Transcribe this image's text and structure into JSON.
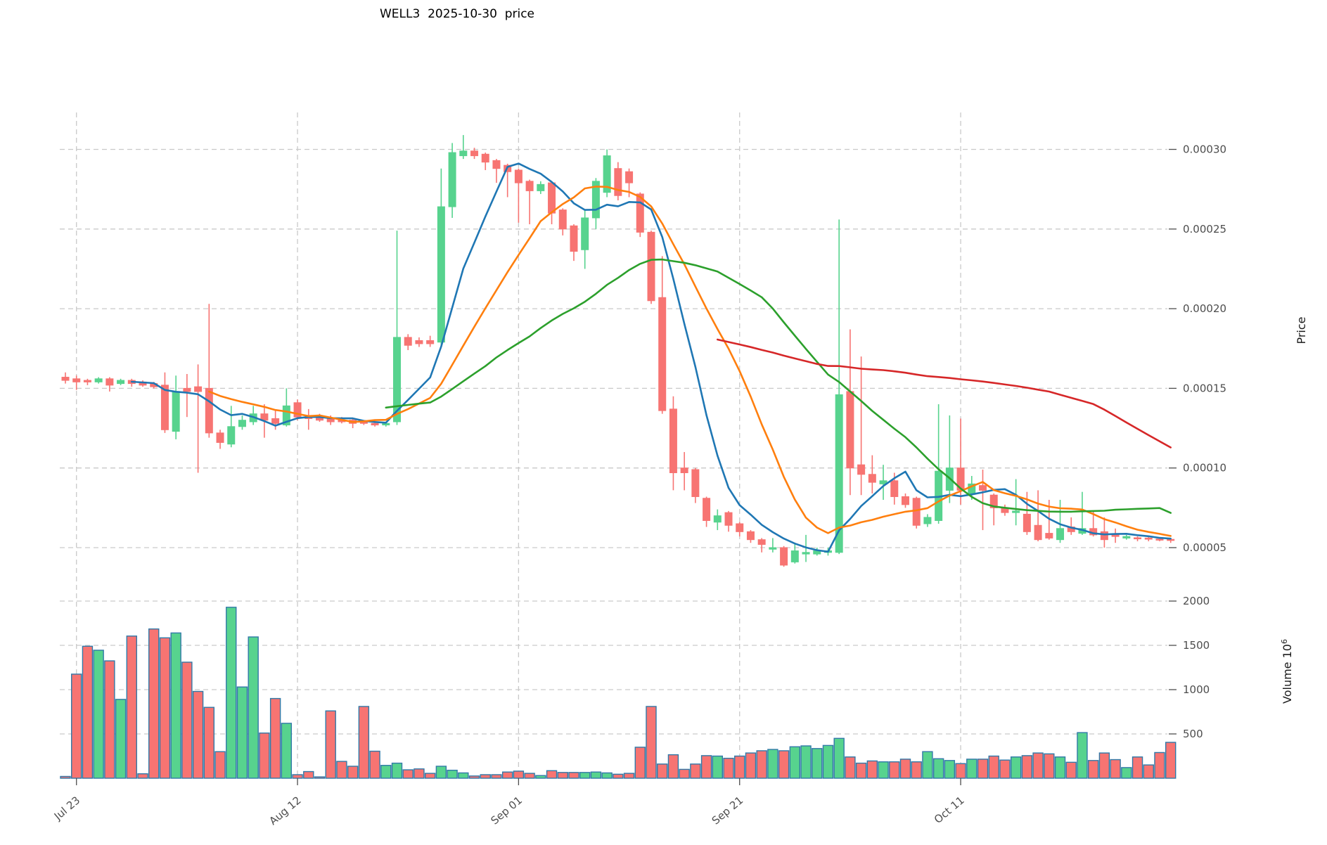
{
  "title": "WELL3  2025-10-30  price",
  "colors": {
    "up": "#57d38e",
    "down": "#f77472",
    "volume_edge": "#3179a8",
    "grid": "#c9c9c9",
    "tick_text": "#4d4d4d",
    "axis_label_text": "#1a1a1a",
    "ma_colors": [
      "#1f77b4",
      "#ff7f0e",
      "#2ca02c",
      "#d62728"
    ]
  },
  "chart_data": {
    "type": "candlestick_with_volume",
    "title": "WELL3  2025-10-30  price",
    "grid": "dashed",
    "legend_position": "none",
    "price_axis": {
      "label": "Price",
      "side": "right",
      "tick_labels": [
        "0.00005",
        "0.00010",
        "0.00015",
        "0.00020",
        "0.00025",
        "0.00030"
      ],
      "tick_values_micro": [
        50,
        100,
        150,
        200,
        250,
        300
      ],
      "range_micro": [
        32,
        330
      ]
    },
    "volume_axis": {
      "label_base": "Volume 10",
      "label_exponent": "6",
      "side": "right",
      "tick_labels": [
        "500",
        "1000",
        "1500",
        "2000"
      ],
      "tick_values": [
        500,
        1000,
        1500,
        2000
      ],
      "range": [
        0,
        2350
      ]
    },
    "x_axis": {
      "tick_labels": [
        "Jul 23",
        "Aug 12",
        "Sep 01",
        "Sep 21",
        "Oct 11"
      ],
      "tick_indices": [
        1,
        21,
        41,
        61,
        81
      ],
      "label_rotation_deg": -40
    },
    "moving_averages": [
      {
        "name": "MA7",
        "period": 7,
        "color": "#1f77b4"
      },
      {
        "name": "MA14",
        "period": 14,
        "color": "#ff7f0e"
      },
      {
        "name": "MA30",
        "period": 30,
        "color": "#2ca02c"
      },
      {
        "name": "MA60",
        "period": 60,
        "color": "#d62728"
      }
    ],
    "price_unit": "1e-6 (candle prices below are price * 10^-6)",
    "volume_unit": "10^6",
    "candles_format": [
      "open",
      "high",
      "low",
      "close",
      "volume"
    ],
    "candles": [
      [
        157,
        160,
        153,
        155,
        20
      ],
      [
        156,
        158,
        149,
        154,
        1175
      ],
      [
        155,
        156,
        152,
        154,
        1490
      ],
      [
        154,
        157,
        153,
        156,
        1445
      ],
      [
        156,
        157,
        148,
        152,
        1325
      ],
      [
        153,
        156,
        152,
        155,
        890
      ],
      [
        155,
        156,
        151,
        153,
        1605
      ],
      [
        154,
        155,
        151,
        152,
        50
      ],
      [
        153,
        154,
        150,
        151,
        1685
      ],
      [
        152,
        160,
        122,
        124,
        1585
      ],
      [
        123,
        158,
        118,
        148,
        1640
      ],
      [
        150,
        159,
        132,
        148,
        1310
      ],
      [
        151,
        165,
        97,
        148,
        980
      ],
      [
        150,
        203,
        119,
        122,
        800
      ],
      [
        122,
        124,
        112,
        116,
        300
      ],
      [
        115,
        139,
        113,
        126,
        1930
      ],
      [
        126,
        133,
        124,
        130,
        1030
      ],
      [
        129,
        139,
        127,
        134,
        1595
      ],
      [
        134,
        140,
        119,
        130,
        510
      ],
      [
        131,
        136,
        124,
        128,
        900
      ],
      [
        127,
        150,
        126,
        139,
        620
      ],
      [
        141,
        143,
        130,
        132,
        40
      ],
      [
        133,
        137,
        124,
        131,
        75
      ],
      [
        132,
        134,
        129,
        130,
        15
      ],
      [
        131,
        133,
        127,
        129,
        760
      ],
      [
        130,
        132,
        128,
        129,
        190
      ],
      [
        130,
        131,
        125,
        128,
        135
      ],
      [
        129,
        130,
        127,
        128,
        810
      ],
      [
        128,
        130,
        126,
        127,
        305
      ],
      [
        127,
        129,
        126,
        128,
        145
      ],
      [
        129,
        249,
        127,
        182,
        170
      ],
      [
        182,
        184,
        174,
        177,
        95
      ],
      [
        180,
        182,
        176,
        178,
        105
      ],
      [
        180,
        183,
        176,
        178,
        55
      ],
      [
        179,
        288,
        177,
        264,
        135
      ],
      [
        264,
        304,
        257,
        298,
        90
      ],
      [
        296,
        309,
        294,
        299,
        60
      ],
      [
        299,
        301,
        294,
        296,
        25
      ],
      [
        297,
        298,
        287,
        292,
        40
      ],
      [
        293,
        294,
        279,
        288,
        40
      ],
      [
        290,
        291,
        270,
        286,
        70
      ],
      [
        287,
        288,
        254,
        279,
        80
      ],
      [
        280,
        281,
        253,
        274,
        55
      ],
      [
        274,
        280,
        272,
        278,
        30
      ],
      [
        279,
        280,
        253,
        260,
        85
      ],
      [
        262,
        263,
        246,
        250,
        65
      ],
      [
        252,
        253,
        230,
        236,
        65
      ],
      [
        237,
        262,
        225,
        257,
        65
      ],
      [
        257,
        282,
        250,
        280,
        70
      ],
      [
        273,
        300,
        270,
        296,
        60
      ],
      [
        288,
        292,
        268,
        271,
        45
      ],
      [
        286,
        288,
        270,
        279,
        55
      ],
      [
        272,
        273,
        245,
        248,
        350
      ],
      [
        248,
        249,
        203,
        205,
        810
      ],
      [
        207,
        233,
        134,
        136,
        160
      ],
      [
        137,
        145,
        86,
        97,
        265
      ],
      [
        100,
        110,
        86,
        97,
        100
      ],
      [
        99,
        100,
        78,
        82,
        160
      ],
      [
        81,
        82,
        63,
        67,
        255
      ],
      [
        66,
        74,
        61,
        70,
        250
      ],
      [
        72,
        73,
        60,
        64,
        225
      ],
      [
        65,
        66,
        57,
        60,
        250
      ],
      [
        60,
        61,
        53,
        55,
        285
      ],
      [
        55,
        56,
        47,
        52,
        310
      ],
      [
        49,
        56,
        47,
        50,
        325
      ],
      [
        50,
        51,
        38,
        39,
        310
      ],
      [
        41,
        53,
        40,
        48,
        355
      ],
      [
        46,
        58,
        41,
        47,
        365
      ],
      [
        46,
        50,
        45,
        48,
        335
      ],
      [
        47,
        50,
        45,
        48,
        370
      ],
      [
        47,
        256,
        46,
        146,
        450
      ],
      [
        148,
        187,
        83,
        100,
        240
      ],
      [
        102,
        170,
        83,
        96,
        170
      ],
      [
        96,
        108,
        84,
        91,
        195
      ],
      [
        90,
        102,
        80,
        92,
        185
      ],
      [
        92,
        97,
        77,
        82,
        185
      ],
      [
        82,
        84,
        75,
        77,
        215
      ],
      [
        81,
        82,
        62,
        64,
        185
      ],
      [
        65,
        71,
        63,
        69,
        300
      ],
      [
        67,
        140,
        65,
        98,
        220
      ],
      [
        86,
        133,
        78,
        100,
        200
      ],
      [
        100,
        131,
        77,
        86,
        165
      ],
      [
        84,
        95,
        80,
        90,
        215
      ],
      [
        89,
        99,
        61,
        86,
        215
      ],
      [
        83,
        84,
        64,
        75,
        250
      ],
      [
        75,
        77,
        70,
        72,
        205
      ],
      [
        72,
        93,
        64,
        73,
        240
      ],
      [
        71,
        85,
        58,
        60,
        255
      ],
      [
        64,
        86,
        54,
        55,
        285
      ],
      [
        59,
        80,
        55,
        56,
        275
      ],
      [
        55,
        80,
        53,
        62,
        240
      ],
      [
        63,
        69,
        58,
        60,
        180
      ],
      [
        59,
        85,
        58,
        62,
        515
      ],
      [
        62,
        73,
        57,
        58,
        200
      ],
      [
        60,
        69,
        50,
        55,
        285
      ],
      [
        58,
        62,
        53,
        57,
        210
      ],
      [
        56,
        58,
        55,
        57,
        120
      ],
      [
        56.2,
        57,
        54,
        55.6,
        240
      ],
      [
        56,
        57,
        54,
        55.3,
        150
      ],
      [
        55.4,
        56,
        54,
        54.9,
        290
      ],
      [
        55.2,
        56,
        53,
        54.7,
        405
      ]
    ]
  }
}
